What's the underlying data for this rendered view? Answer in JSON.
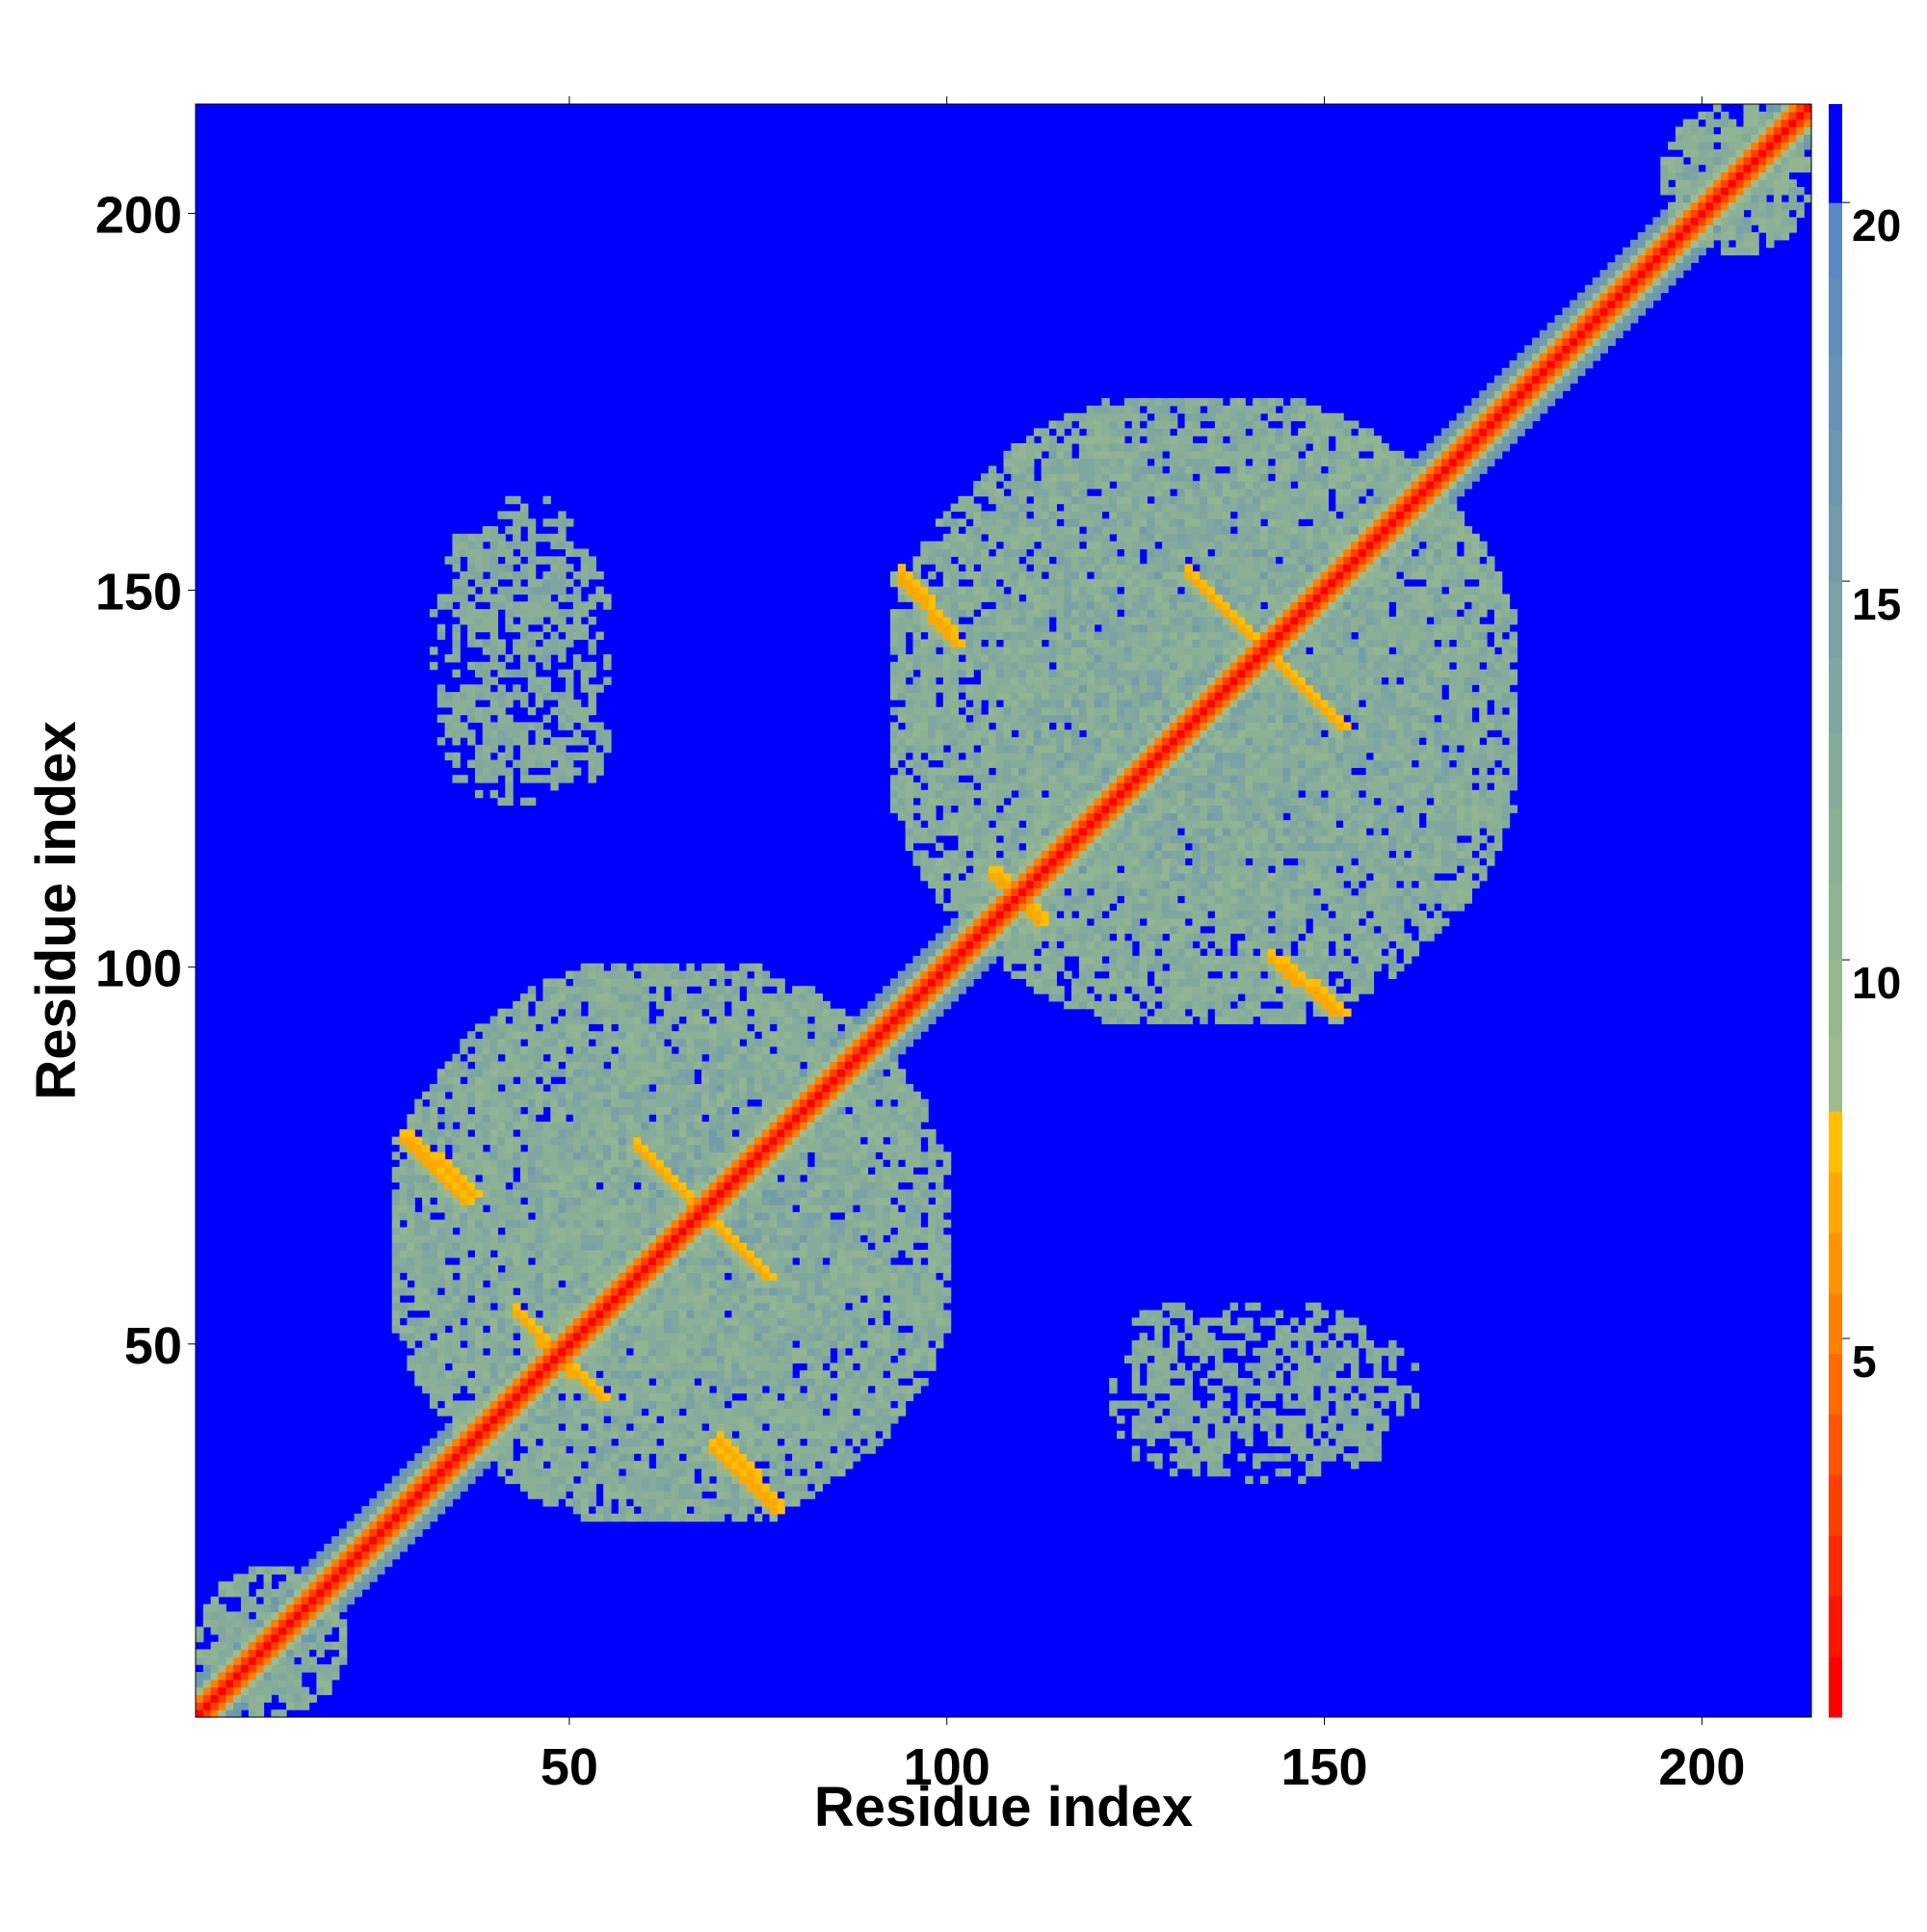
{
  "chart_data": {
    "type": "heatmap",
    "title": "",
    "xlabel": "Residue index",
    "ylabel": "Residue index",
    "xlim": [
      1,
      214
    ],
    "ylim": [
      1,
      214
    ],
    "x_ticks": [
      50,
      100,
      150,
      200
    ],
    "y_ticks": [
      50,
      100,
      150,
      200
    ],
    "colorbar": {
      "range": [
        0,
        21.3
      ],
      "ticks": [
        5,
        10,
        15,
        20
      ],
      "levels": [
        {
          "max": 0.8,
          "color": "#ff0000"
        },
        {
          "max": 1.6,
          "color": "#ff1500"
        },
        {
          "max": 2.4,
          "color": "#ff2a00"
        },
        {
          "max": 3.2,
          "color": "#ff3f00"
        },
        {
          "max": 4.0,
          "color": "#ff5400"
        },
        {
          "max": 4.8,
          "color": "#ff6a00"
        },
        {
          "max": 5.6,
          "color": "#ff7f00"
        },
        {
          "max": 6.4,
          "color": "#ff9400"
        },
        {
          "max": 7.2,
          "color": "#ffa900"
        },
        {
          "max": 8.0,
          "color": "#ffbe00"
        },
        {
          "max": 9.0,
          "color": "#9dbb8e"
        },
        {
          "max": 10.0,
          "color": "#97b88f"
        },
        {
          "max": 11.0,
          "color": "#91b492"
        },
        {
          "max": 12.0,
          "color": "#8bb096"
        },
        {
          "max": 13.0,
          "color": "#85ab9b"
        },
        {
          "max": 14.0,
          "color": "#7fa6a0"
        },
        {
          "max": 15.0,
          "color": "#79a1a6"
        },
        {
          "max": 16.0,
          "color": "#739cab"
        },
        {
          "max": 17.0,
          "color": "#6d97b1"
        },
        {
          "max": 18.0,
          "color": "#6792b6"
        },
        {
          "max": 19.0,
          "color": "#618dbb"
        },
        {
          "max": 20.0,
          "color": "#5b88c0"
        },
        {
          "max": 21.3,
          "color": "#0000ff"
        }
      ]
    },
    "background_value": 21,
    "diagonal_band": {
      "core_value": 1.5,
      "inner_value": 5.5,
      "outer_value": 12
    },
    "contact_blocks": [
      {
        "x": [
          27,
          100
        ],
        "y": [
          27,
          100
        ],
        "value": 13.5,
        "density": 0.9
      },
      {
        "x": [
          93,
          175
        ],
        "y": [
          93,
          175
        ],
        "value": 13.5,
        "density": 0.9
      },
      {
        "x": [
          195,
          214
        ],
        "y": [
          195,
          214
        ],
        "value": 13.5,
        "density": 0.8
      },
      {
        "x": [
          1,
          20
        ],
        "y": [
          1,
          20
        ],
        "value": 13.5,
        "density": 0.7
      },
      {
        "x": [
          32,
          55
        ],
        "y": [
          123,
          162
        ],
        "value": 14,
        "density": 0.55
      },
      {
        "x": [
          122,
          137
        ],
        "y": [
          33,
          55
        ],
        "value": 14,
        "density": 0.55
      },
      {
        "x": [
          142,
          160
        ],
        "y": [
          33,
          55
        ],
        "value": 14,
        "density": 0.55
      }
    ],
    "strands": [
      {
        "from": [
          28,
          77
        ],
        "to": [
          36,
          69
        ],
        "value": 6.5
      },
      {
        "from": [
          60,
          75
        ],
        "to": [
          68,
          67
        ],
        "value": 6.5
      },
      {
        "from": [
          68,
          67
        ],
        "to": [
          76,
          59
        ],
        "value": 6.5
      },
      {
        "from": [
          70,
          37
        ],
        "to": [
          77,
          29
        ],
        "value": 6.5
      },
      {
        "from": [
          43,
          54
        ],
        "to": [
          50,
          46
        ],
        "value": 6.5
      },
      {
        "from": [
          94,
          152
        ],
        "to": [
          100,
          145
        ],
        "value": 6.5
      },
      {
        "from": [
          132,
          152
        ],
        "to": [
          141,
          143
        ],
        "value": 6.5
      },
      {
        "from": [
          141,
          143
        ],
        "to": [
          150,
          134
        ],
        "value": 6.5
      },
      {
        "from": [
          143,
          101
        ],
        "to": [
          151,
          94
        ],
        "value": 6.5
      },
      {
        "from": [
          106,
          112
        ],
        "to": [
          112,
          107
        ],
        "value": 6.5
      }
    ]
  }
}
